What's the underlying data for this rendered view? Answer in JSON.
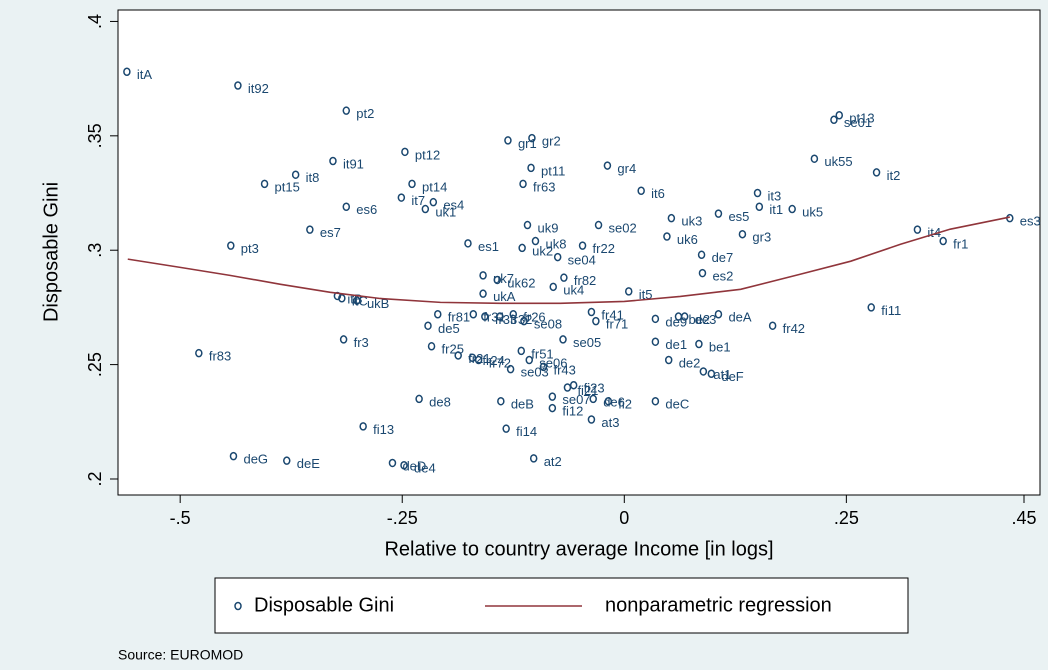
{
  "chart_data": {
    "type": "scatter",
    "xlabel": "Relative to country average Income [in logs]",
    "ylabel": "Disposable Gini",
    "source": "Source: EUROMOD",
    "xlim": [
      -0.57,
      0.468
    ],
    "ylim": [
      0.193,
      0.405
    ],
    "xticks": [
      {
        "value": -0.5,
        "label": "-.5"
      },
      {
        "value": -0.25,
        "label": "-.25"
      },
      {
        "value": 0,
        "label": "0"
      },
      {
        "value": 0.25,
        "label": ".25"
      },
      {
        "value": 0.45,
        "label": ".45"
      }
    ],
    "yticks": [
      {
        "value": 0.2,
        "label": ".2"
      },
      {
        "value": 0.25,
        "label": ".25"
      },
      {
        "value": 0.3,
        "label": ".3"
      },
      {
        "value": 0.35,
        "label": ".35"
      },
      {
        "value": 0.4,
        "label": ".4"
      }
    ],
    "grid": false,
    "legend": "bottom",
    "series": [
      {
        "name": "Disposable Gini",
        "type": "scatter",
        "color": "#1a476f",
        "labels": [
          "itA",
          "it92",
          "pt2",
          "pt12",
          "it91",
          "it8",
          "pt15",
          "pt14",
          "it7",
          "es4",
          "uk1",
          "es6",
          "es7",
          "pt3",
          "gr1",
          "gr2",
          "pt11",
          "gr4",
          "fr63",
          "it6",
          "pt13",
          "se01",
          "uk55",
          "it2",
          "it3",
          "it1",
          "uk5",
          "es5",
          "uk3",
          "se02",
          "uk9",
          "es3",
          "it4",
          "fr1",
          "gr3",
          "uk6",
          "es1",
          "uk8",
          "uk2",
          "fr22",
          "se04",
          "de7",
          "es2",
          "uk7",
          "uk62",
          "fr82",
          "uk4",
          "ukA",
          "it5",
          "fi11",
          "itB",
          "itC",
          "ukB",
          "fr81",
          "fr31",
          "fr33",
          "fr32",
          "fr26",
          "se08",
          "de5",
          "fr41",
          "fr71",
          "de9",
          "be2",
          "de3",
          "deA",
          "fr42",
          "se05",
          "fr3",
          "de1",
          "be1",
          "fr25",
          "fr21",
          "fr24",
          "fr72",
          "fr51",
          "se06",
          "se03",
          "fr43",
          "de2",
          "at1",
          "deF",
          "fr83",
          "fi21",
          "fi23",
          "se07",
          "de6",
          "fi2",
          "deC",
          "fi12",
          "at3",
          "de8",
          "deB",
          "fi14",
          "fi13",
          "at2",
          "deG",
          "deE",
          "deD",
          "de4"
        ],
        "x": [
          -0.56,
          -0.435,
          -0.313,
          -0.247,
          -0.328,
          -0.37,
          -0.405,
          -0.239,
          -0.251,
          -0.215,
          -0.224,
          -0.313,
          -0.354,
          -0.443,
          -0.131,
          -0.104,
          -0.105,
          -0.019,
          -0.114,
          0.019,
          0.242,
          0.236,
          0.214,
          0.284,
          0.15,
          0.152,
          0.189,
          0.106,
          0.053,
          -0.029,
          -0.109,
          0.434,
          0.33,
          0.359,
          0.133,
          0.048,
          -0.176,
          -0.1,
          -0.115,
          -0.047,
          -0.075,
          0.087,
          0.088,
          -0.159,
          -0.143,
          -0.068,
          -0.08,
          -0.159,
          0.005,
          0.278,
          -0.323,
          -0.318,
          -0.301,
          -0.21,
          -0.17,
          -0.157,
          -0.14,
          -0.125,
          -0.113,
          -0.221,
          -0.037,
          -0.032,
          0.035,
          0.061,
          0.068,
          0.106,
          0.167,
          -0.069,
          -0.316,
          0.035,
          0.084,
          -0.217,
          -0.187,
          -0.171,
          -0.164,
          -0.116,
          -0.107,
          -0.128,
          -0.091,
          0.05,
          0.089,
          0.098,
          -0.479,
          -0.064,
          -0.057,
          -0.081,
          -0.035,
          -0.018,
          0.035,
          -0.081,
          -0.037,
          -0.231,
          -0.139,
          -0.133,
          -0.294,
          -0.102,
          -0.44,
          -0.38,
          -0.261,
          -0.248
        ],
        "values": [
          0.378,
          0.372,
          0.361,
          0.343,
          0.339,
          0.333,
          0.329,
          0.329,
          0.323,
          0.321,
          0.318,
          0.319,
          0.309,
          0.302,
          0.348,
          0.349,
          0.336,
          0.337,
          0.329,
          0.326,
          0.359,
          0.357,
          0.34,
          0.334,
          0.325,
          0.319,
          0.318,
          0.316,
          0.314,
          0.311,
          0.311,
          0.314,
          0.309,
          0.304,
          0.307,
          0.306,
          0.303,
          0.304,
          0.301,
          0.302,
          0.297,
          0.298,
          0.29,
          0.289,
          0.287,
          0.288,
          0.284,
          0.281,
          0.282,
          0.275,
          0.28,
          0.279,
          0.278,
          0.272,
          0.272,
          0.271,
          0.271,
          0.272,
          0.269,
          0.267,
          0.273,
          0.269,
          0.27,
          0.271,
          0.271,
          0.272,
          0.267,
          0.261,
          0.261,
          0.26,
          0.259,
          0.258,
          0.254,
          0.253,
          0.252,
          0.256,
          0.252,
          0.248,
          0.249,
          0.252,
          0.247,
          0.246,
          0.255,
          0.24,
          0.241,
          0.236,
          0.235,
          0.234,
          0.234,
          0.231,
          0.226,
          0.235,
          0.234,
          0.222,
          0.223,
          0.209,
          0.21,
          0.208,
          0.207,
          0.206
        ]
      },
      {
        "name": "nonparametric regression",
        "type": "line",
        "color": "#90353b",
        "x": [
          -0.559,
          -0.5,
          -0.444,
          -0.387,
          -0.331,
          -0.275,
          -0.207,
          -0.14,
          -0.072,
          0,
          0.063,
          0.131,
          0.198,
          0.255,
          0.311,
          0.367,
          0.434
        ],
        "values": [
          0.2961,
          0.2925,
          0.289,
          0.2851,
          0.2816,
          0.2789,
          0.2772,
          0.2768,
          0.2768,
          0.2776,
          0.2798,
          0.2829,
          0.2895,
          0.2952,
          0.3026,
          0.3092,
          0.3145
        ]
      }
    ]
  }
}
